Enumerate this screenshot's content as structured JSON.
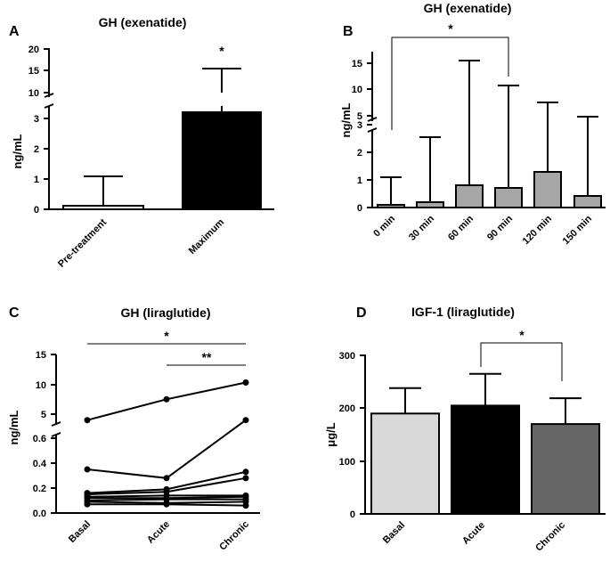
{
  "chart_data": [
    {
      "panel": "A",
      "type": "bar",
      "title": "GH (exenatide)",
      "ylabel": "ng/mL",
      "categories": [
        "Pre-treatment",
        "Maximum"
      ],
      "values": [
        0.1,
        3.3
      ],
      "error_upper": [
        1.1,
        15.5
      ],
      "bar_colors": [
        "#ffffff",
        "#000000"
      ],
      "y_lower_ticks": [
        "0",
        "1",
        "2",
        "3"
      ],
      "y_upper_ticks": [
        "10",
        "15",
        "20"
      ],
      "y_split": "broken axis: 0–3.5 and 10–20",
      "significance": [
        "*"
      ]
    },
    {
      "panel": "B",
      "type": "bar",
      "title": "GH (exenatide)",
      "ylabel": "ng/mL",
      "categories": [
        "0 min",
        "30 min",
        "60 min",
        "90 min",
        "120 min",
        "150 min"
      ],
      "values": [
        0.1,
        0.2,
        0.8,
        0.7,
        1.3,
        0.4
      ],
      "error_upper": [
        1.1,
        2.6,
        15.5,
        11.0,
        7.5,
        4.8
      ],
      "bar_color": "#a6a6a6",
      "y_lower_ticks": [
        "0",
        "1",
        "2",
        "3"
      ],
      "y_upper_ticks": [
        "5",
        "10",
        "15"
      ],
      "y_split": "broken axis: 0–3.5 and 4–18",
      "significance": [
        "*"
      ]
    },
    {
      "panel": "C",
      "type": "line",
      "title": "GH (liraglutide)",
      "ylabel": "ng/mL",
      "categories": [
        "Basal",
        "Acute",
        "Chronic"
      ],
      "series": [
        {
          "values": [
            4.0,
            7.5,
            10.3
          ]
        },
        {
          "values": [
            0.35,
            0.28,
            4.0
          ]
        },
        {
          "values": [
            0.16,
            0.19,
            0.33
          ]
        },
        {
          "values": [
            0.15,
            0.17,
            0.28
          ]
        },
        {
          "values": [
            0.13,
            0.14,
            0.14
          ]
        },
        {
          "values": [
            0.12,
            0.12,
            0.13
          ]
        },
        {
          "values": [
            0.1,
            0.11,
            0.11
          ]
        },
        {
          "values": [
            0.09,
            0.08,
            0.09
          ]
        },
        {
          "values": [
            0.07,
            0.07,
            0.06
          ]
        }
      ],
      "y_lower_ticks": [
        "0.0",
        "0.2",
        "0.4",
        "0.6"
      ],
      "y_upper_ticks": [
        "5",
        "10",
        "15"
      ],
      "y_split": "broken axis: 0–0.6 and 2–15",
      "significance": [
        "*",
        "**"
      ]
    },
    {
      "panel": "D",
      "type": "bar",
      "title": "IGF-1 (liraglutide)",
      "ylabel": "μg/L",
      "categories": [
        "Basal",
        "Acute",
        "Chronic"
      ],
      "values": [
        190,
        205,
        170
      ],
      "error_upper": [
        238,
        265,
        219
      ],
      "bar_colors": [
        "#d9d9d9",
        "#000000",
        "#666666"
      ],
      "ylim": [
        0,
        300
      ],
      "y_ticks": [
        "0",
        "100",
        "200",
        "300"
      ],
      "significance": [
        "*"
      ]
    }
  ]
}
